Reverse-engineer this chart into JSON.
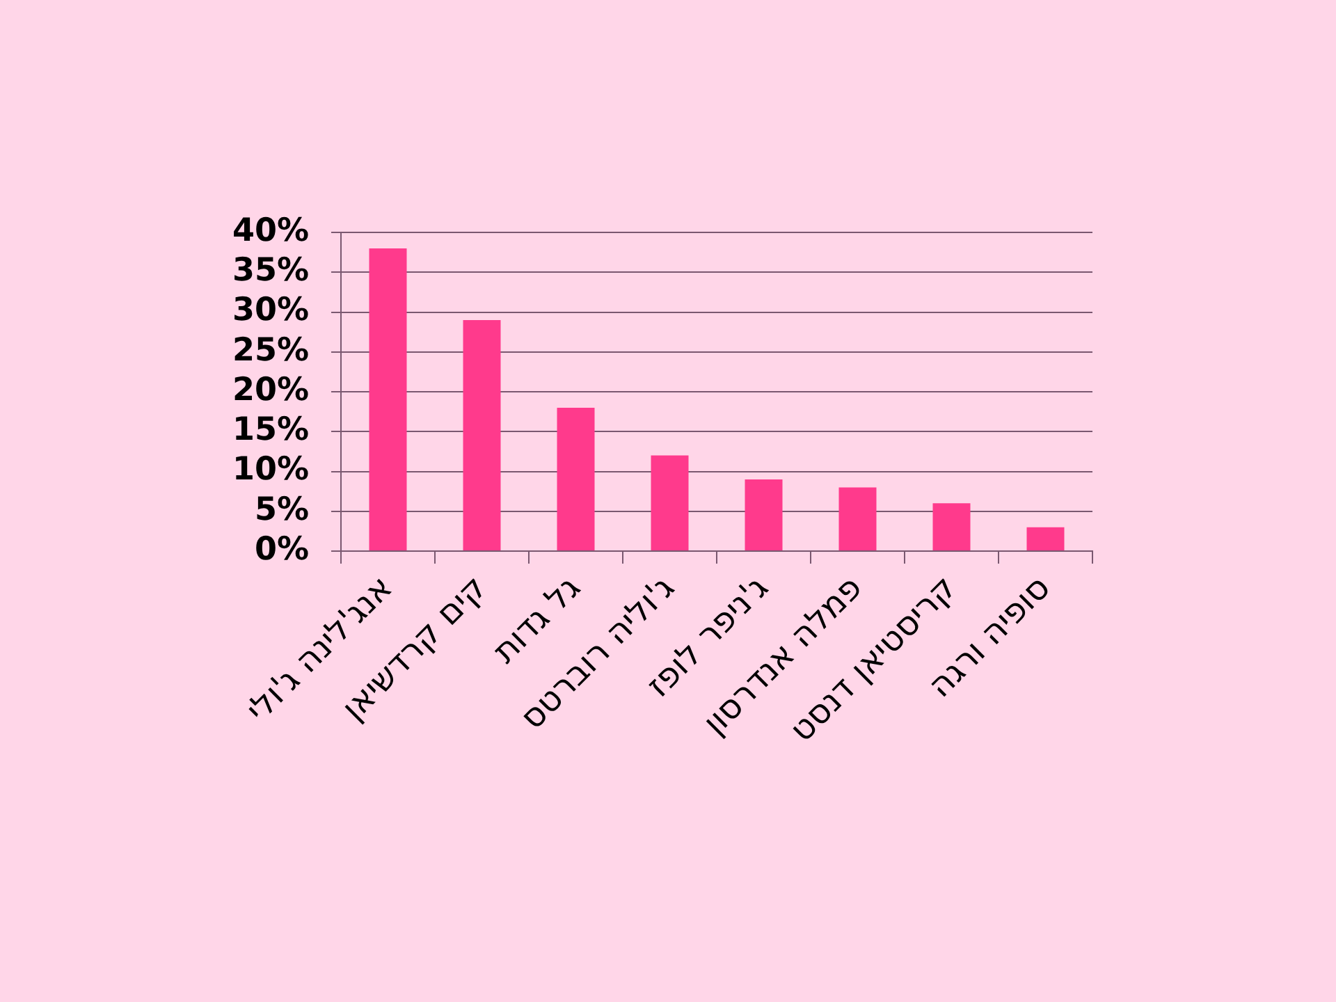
{
  "chart_data": {
    "type": "bar",
    "categories": [
      "אנג'לינה ג'ולי",
      "קים קרדשיאן",
      "גל גדות",
      "ג'וליה רוברטס",
      "ג'ניפר לופז",
      "פמלה אנדרסון",
      "קריסטיאן דנסט",
      "סופיה ורגה"
    ],
    "values": [
      38,
      29,
      18,
      12,
      9,
      8,
      6,
      3
    ],
    "color": "#ff3a8c",
    "ylim": [
      0,
      40
    ],
    "yticks": [
      {
        "value": 0,
        "label": "0%"
      },
      {
        "value": 5,
        "label": "5%"
      },
      {
        "value": 10,
        "label": "10%"
      },
      {
        "value": 15,
        "label": "15%"
      },
      {
        "value": 20,
        "label": "20%"
      },
      {
        "value": 25,
        "label": "25%"
      },
      {
        "value": 30,
        "label": "30%"
      },
      {
        "value": 35,
        "label": "35%"
      },
      {
        "value": 40,
        "label": "40%"
      }
    ],
    "grid": "y"
  }
}
